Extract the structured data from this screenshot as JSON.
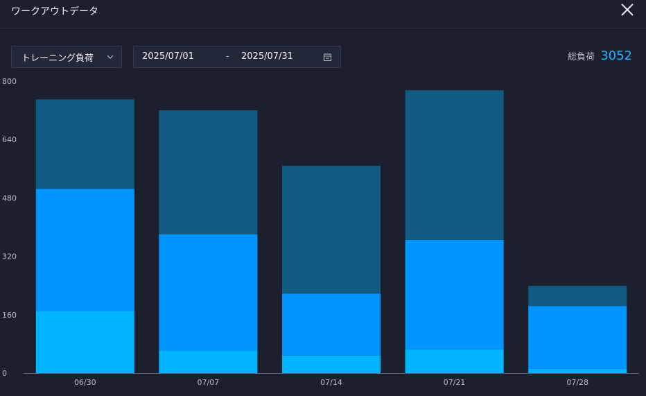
{
  "window": {
    "title": "ワークアウトデータ",
    "close_icon": "close-icon"
  },
  "toolbar": {
    "metric_select": "トレーニング負荷",
    "date_start": "2025/07/01",
    "date_separator": "-",
    "date_end": "2025/07/31",
    "calendar_icon": "calendar-icon",
    "total_label": "総負荷",
    "total_value": "3052"
  },
  "colors": {
    "background": "#1b1f2e",
    "bottom": "#00b4ff",
    "middle": "#0095ff",
    "top": "#115a82",
    "accent": "#1fb6ff"
  },
  "chart_data": {
    "type": "bar",
    "stacked": true,
    "categories": [
      "06/30",
      "07/07",
      "07/14",
      "07/21",
      "07/28"
    ],
    "series": [
      {
        "values": [
          170,
          62,
          48,
          65,
          12
        ]
      },
      {
        "values": [
          335,
          318,
          170,
          300,
          172
        ]
      },
      {
        "values": [
          245,
          340,
          350,
          410,
          55
        ]
      }
    ],
    "yticks": [
      0,
      160,
      320,
      480,
      640,
      800
    ],
    "ylim": [
      0,
      800
    ],
    "grid": false,
    "legend": "none"
  }
}
